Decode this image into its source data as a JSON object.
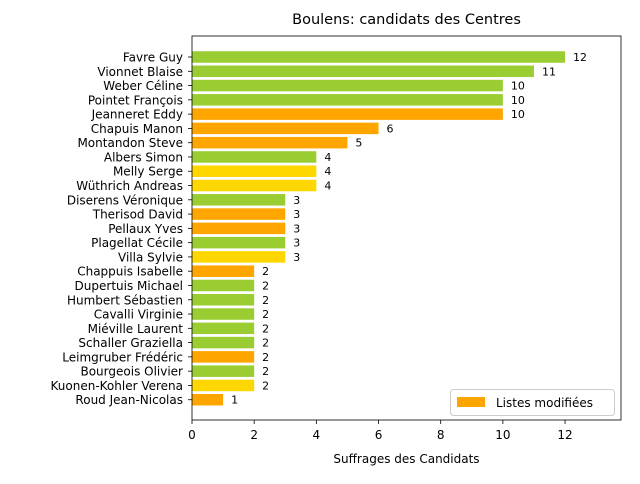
{
  "chart_data": {
    "type": "bar",
    "orientation": "horizontal",
    "title": "Boulens: candidats des Centres",
    "xlabel": "Suffrages des Candidats",
    "ylabel": "",
    "xlim": [
      0,
      13.8
    ],
    "xticks": [
      0,
      2,
      4,
      6,
      8,
      10,
      12
    ],
    "grid": false,
    "legend": {
      "placement": "bottom-right",
      "entries": [
        {
          "label": "Listes modifiées",
          "color": "#ffa500"
        }
      ]
    },
    "colors": {
      "green": "#9acd32",
      "orange": "#ffa500",
      "yellow": "#ffd700"
    },
    "bars": [
      {
        "label": "Favre Guy",
        "value": 12,
        "color": "green"
      },
      {
        "label": "Vionnet Blaise",
        "value": 11,
        "color": "green"
      },
      {
        "label": "Weber Céline",
        "value": 10,
        "color": "green"
      },
      {
        "label": "Pointet François",
        "value": 10,
        "color": "green"
      },
      {
        "label": "Jeanneret Eddy",
        "value": 10,
        "color": "orange"
      },
      {
        "label": "Chapuis Manon",
        "value": 6,
        "color": "orange"
      },
      {
        "label": "Montandon Steve",
        "value": 5,
        "color": "orange"
      },
      {
        "label": "Albers Simon",
        "value": 4,
        "color": "green"
      },
      {
        "label": "Melly Serge",
        "value": 4,
        "color": "yellow"
      },
      {
        "label": "Wüthrich Andreas",
        "value": 4,
        "color": "yellow"
      },
      {
        "label": "Diserens Véronique",
        "value": 3,
        "color": "green"
      },
      {
        "label": "Therisod David",
        "value": 3,
        "color": "orange"
      },
      {
        "label": "Pellaux Yves",
        "value": 3,
        "color": "orange"
      },
      {
        "label": "Plagellat Cécile",
        "value": 3,
        "color": "green"
      },
      {
        "label": "Villa Sylvie",
        "value": 3,
        "color": "yellow"
      },
      {
        "label": "Chappuis Isabelle",
        "value": 2,
        "color": "orange"
      },
      {
        "label": "Dupertuis Michael",
        "value": 2,
        "color": "green"
      },
      {
        "label": "Humbert Sébastien",
        "value": 2,
        "color": "green"
      },
      {
        "label": "Cavalli Virginie",
        "value": 2,
        "color": "green"
      },
      {
        "label": "Miéville Laurent",
        "value": 2,
        "color": "green"
      },
      {
        "label": "Schaller Graziella",
        "value": 2,
        "color": "green"
      },
      {
        "label": "Leimgruber Frédéric",
        "value": 2,
        "color": "orange"
      },
      {
        "label": "Bourgeois Olivier",
        "value": 2,
        "color": "green"
      },
      {
        "label": "Kuonen-Kohler Verena",
        "value": 2,
        "color": "yellow"
      },
      {
        "label": "Roud Jean-Nicolas",
        "value": 1,
        "color": "orange"
      }
    ]
  }
}
